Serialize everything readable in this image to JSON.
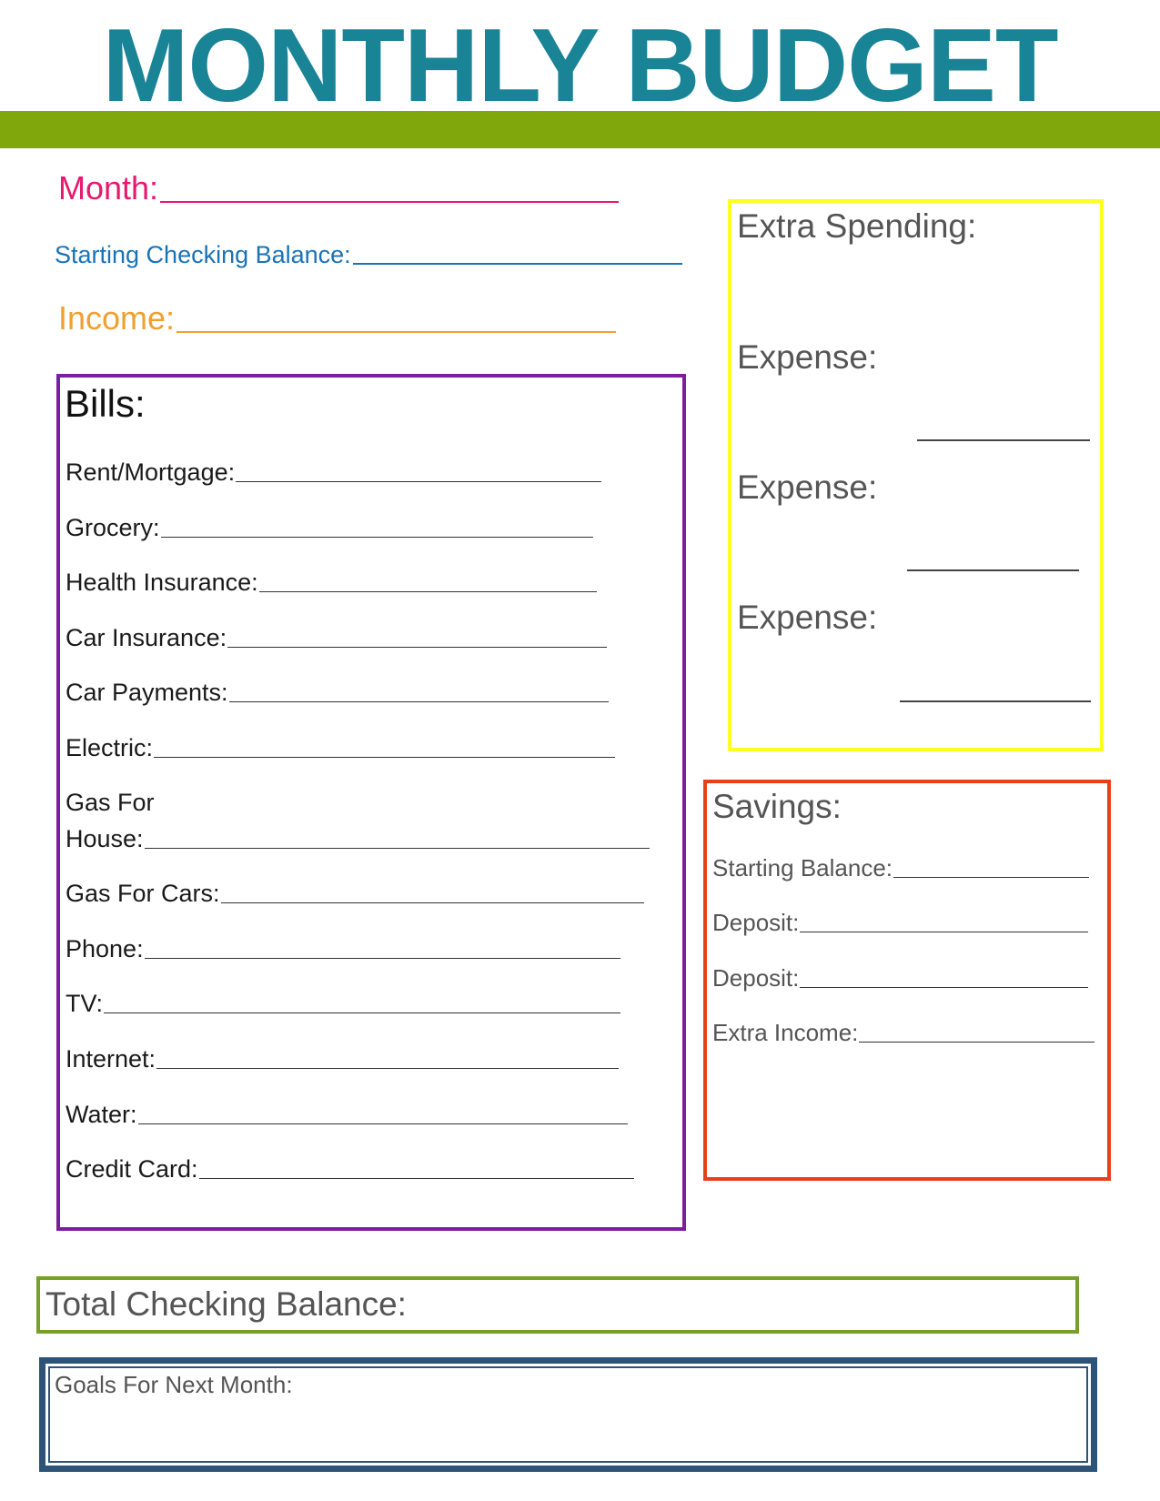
{
  "title": "MONTHLY BUDGET",
  "colors": {
    "title": "#1a8497",
    "banner": "#80a70b",
    "month": "#e8186f",
    "starting": "#1a73b5",
    "income": "#f0a030",
    "bills": "#7a1fa0",
    "extra": "#ffff20",
    "savings": "#e8401a",
    "total": "#76a02a",
    "goals": "#2d5478"
  },
  "header_fields": {
    "month": "Month:",
    "starting_checking_balance": "Starting Checking Balance:",
    "income": "Income:"
  },
  "bills": {
    "heading": "Bills:",
    "items": [
      "Rent/Mortgage:",
      "Grocery:",
      "Health Insurance:",
      "Car Insurance:",
      "Car Payments:",
      "Electric:",
      "Gas For",
      "House:",
      "Gas For Cars:",
      "Phone:",
      "TV:",
      "Internet:",
      "Water:",
      "Credit Card:"
    ]
  },
  "extra_spending": {
    "heading": "Extra Spending:",
    "expenses": [
      "Expense:",
      "Expense:",
      "Expense:"
    ]
  },
  "savings": {
    "heading": "Savings:",
    "items": [
      "Starting Balance:",
      "Deposit:",
      "Deposit:",
      "Extra Income:"
    ]
  },
  "total_checking_balance": "Total Checking Balance:",
  "goals": "Goals For Next Month:"
}
